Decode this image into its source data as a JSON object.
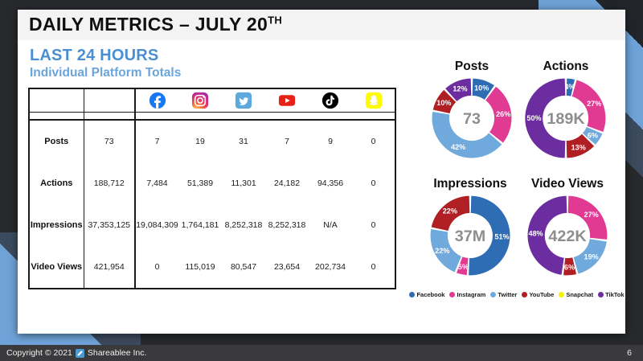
{
  "slide": {
    "title": "DAILY METRICS – JULY 20",
    "title_sup": "TH",
    "subtitle1": "LAST 24 HOURS",
    "subtitle2": "Individual Platform Totals",
    "page_number": "6",
    "footer_copyright": "Copyright © 2021",
    "footer_company": "Shareablee Inc."
  },
  "platforms": [
    {
      "key": "facebook",
      "name": "Facebook",
      "color": "#2e6db4"
    },
    {
      "key": "instagram",
      "name": "Instagram",
      "color": "#e03a93"
    },
    {
      "key": "twitter",
      "name": "Twitter",
      "color": "#70a9dc"
    },
    {
      "key": "youtube",
      "name": "YouTube",
      "color": "#b01f24"
    },
    {
      "key": "snapchat",
      "name": "Snapchat",
      "color": "#f4f10c"
    },
    {
      "key": "tiktok",
      "name": "TikTok",
      "color": "#6b2d9f"
    }
  ],
  "header_icon_order": [
    "facebook",
    "instagram",
    "twitter",
    "youtube",
    "tiktok",
    "snapchat"
  ],
  "table": {
    "rows": [
      {
        "label": "Posts",
        "total": "73",
        "values": [
          "7",
          "19",
          "31",
          "7",
          "9",
          "0"
        ]
      },
      {
        "label": "Actions",
        "total": "188,712",
        "values": [
          "7,484",
          "51,389",
          "11,301",
          "24,182",
          "94,356",
          "0"
        ]
      },
      {
        "label": "Impressions",
        "total": "37,353,125",
        "values": [
          "19,084,309",
          "1,764,181",
          "8,252,318",
          "8,252,318",
          "N/A",
          "0"
        ]
      },
      {
        "label": "Video Views",
        "total": "421,954",
        "values": [
          "0",
          "115,019",
          "80,547",
          "23,654",
          "202,734",
          "0"
        ]
      }
    ]
  },
  "chart_data": [
    {
      "type": "donut",
      "title": "Posts",
      "center_label": "73",
      "segments": [
        {
          "platform": "facebook",
          "pct": 10
        },
        {
          "platform": "instagram",
          "pct": 26
        },
        {
          "platform": "twitter",
          "pct": 42
        },
        {
          "platform": "youtube",
          "pct": 10
        },
        {
          "platform": "tiktok",
          "pct": 12
        }
      ]
    },
    {
      "type": "donut",
      "title": "Actions",
      "center_label": "189K",
      "segments": [
        {
          "platform": "facebook",
          "pct": 4
        },
        {
          "platform": "instagram",
          "pct": 27
        },
        {
          "platform": "twitter",
          "pct": 6
        },
        {
          "platform": "youtube",
          "pct": 13
        },
        {
          "platform": "tiktok",
          "pct": 50
        }
      ]
    },
    {
      "type": "donut",
      "title": "Impressions",
      "center_label": "37M",
      "segments": [
        {
          "platform": "facebook",
          "pct": 51
        },
        {
          "platform": "instagram",
          "pct": 5
        },
        {
          "platform": "twitter",
          "pct": 22
        },
        {
          "platform": "youtube",
          "pct": 22
        }
      ]
    },
    {
      "type": "donut",
      "title": "Video Views",
      "center_label": "422K",
      "segments": [
        {
          "platform": "instagram",
          "pct": 27
        },
        {
          "platform": "twitter",
          "pct": 19
        },
        {
          "platform": "youtube",
          "pct": 6
        },
        {
          "platform": "tiktok",
          "pct": 48
        }
      ]
    }
  ],
  "style": {
    "center_label_color": "#8e8e8e",
    "segment_label_color": "#ffffff"
  }
}
